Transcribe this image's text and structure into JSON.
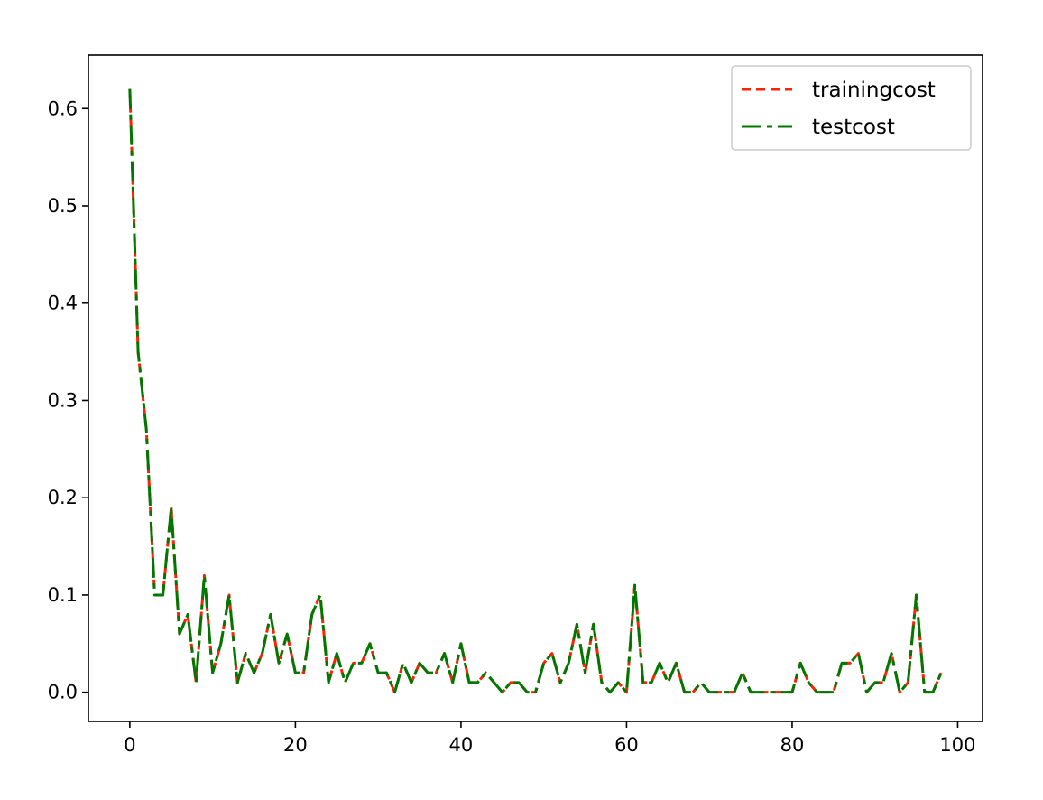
{
  "chart_data": {
    "type": "line",
    "title": "",
    "xlabel": "",
    "ylabel": "",
    "xlim": [
      -5,
      103
    ],
    "ylim": [
      -0.03,
      0.655
    ],
    "xticks": [
      0,
      20,
      40,
      60,
      80,
      100
    ],
    "yticks": [
      0.0,
      0.1,
      0.2,
      0.3,
      0.4,
      0.5,
      0.6
    ],
    "xtick_labels": [
      "0",
      "20",
      "40",
      "60",
      "80",
      "100"
    ],
    "ytick_labels": [
      "0.0",
      "0.1",
      "0.2",
      "0.3",
      "0.4",
      "0.5",
      "0.6"
    ],
    "grid": false,
    "legend_position": "top-right",
    "x": [
      0,
      1,
      2,
      3,
      4,
      5,
      6,
      7,
      8,
      9,
      10,
      11,
      12,
      13,
      14,
      15,
      16,
      17,
      18,
      19,
      20,
      21,
      22,
      23,
      24,
      25,
      26,
      27,
      28,
      29,
      30,
      31,
      32,
      33,
      34,
      35,
      36,
      37,
      38,
      39,
      40,
      41,
      42,
      43,
      44,
      45,
      46,
      47,
      48,
      49,
      50,
      51,
      52,
      53,
      54,
      55,
      56,
      57,
      58,
      59,
      60,
      61,
      62,
      63,
      64,
      65,
      66,
      67,
      68,
      69,
      70,
      71,
      72,
      73,
      74,
      75,
      76,
      77,
      78,
      79,
      80,
      81,
      82,
      83,
      84,
      85,
      86,
      87,
      88,
      89,
      90,
      91,
      92,
      93,
      94,
      95,
      96,
      97,
      98
    ],
    "series": [
      {
        "name": "trainingcost",
        "color": "#ff2200",
        "style": "dashed",
        "values": [
          0.62,
          0.35,
          0.27,
          0.1,
          0.1,
          0.19,
          0.06,
          0.08,
          0.01,
          0.12,
          0.02,
          0.05,
          0.1,
          0.01,
          0.04,
          0.02,
          0.04,
          0.08,
          0.03,
          0.06,
          0.02,
          0.02,
          0.08,
          0.1,
          0.01,
          0.04,
          0.01,
          0.03,
          0.03,
          0.05,
          0.02,
          0.02,
          0.0,
          0.03,
          0.01,
          0.03,
          0.02,
          0.02,
          0.04,
          0.01,
          0.05,
          0.01,
          0.01,
          0.02,
          0.01,
          0.0,
          0.01,
          0.01,
          0.0,
          0.0,
          0.03,
          0.04,
          0.01,
          0.03,
          0.07,
          0.02,
          0.07,
          0.01,
          0.0,
          0.01,
          0.0,
          0.11,
          0.01,
          0.01,
          0.03,
          0.01,
          0.03,
          0.0,
          0.0,
          0.01,
          0.0,
          0.0,
          0.0,
          0.0,
          0.02,
          0.0,
          0.0,
          0.0,
          0.0,
          0.0,
          0.0,
          0.03,
          0.01,
          0.0,
          0.0,
          0.0,
          0.03,
          0.03,
          0.04,
          0.0,
          0.01,
          0.01,
          0.04,
          0.0,
          0.01,
          0.1,
          0.0,
          0.0,
          0.02
        ]
      },
      {
        "name": "testcost",
        "color": "#007700",
        "style": "dashed",
        "values": [
          0.62,
          0.35,
          0.27,
          0.1,
          0.1,
          0.19,
          0.06,
          0.08,
          0.01,
          0.12,
          0.02,
          0.05,
          0.1,
          0.01,
          0.04,
          0.02,
          0.04,
          0.08,
          0.03,
          0.06,
          0.02,
          0.02,
          0.08,
          0.1,
          0.01,
          0.04,
          0.01,
          0.03,
          0.03,
          0.05,
          0.02,
          0.02,
          0.0,
          0.03,
          0.01,
          0.03,
          0.02,
          0.02,
          0.04,
          0.01,
          0.05,
          0.01,
          0.01,
          0.02,
          0.01,
          0.0,
          0.01,
          0.01,
          0.0,
          0.0,
          0.03,
          0.04,
          0.01,
          0.03,
          0.07,
          0.02,
          0.07,
          0.01,
          0.0,
          0.01,
          0.0,
          0.11,
          0.01,
          0.01,
          0.03,
          0.01,
          0.03,
          0.0,
          0.0,
          0.01,
          0.0,
          0.0,
          0.0,
          0.0,
          0.02,
          0.0,
          0.0,
          0.0,
          0.0,
          0.0,
          0.0,
          0.03,
          0.01,
          0.0,
          0.0,
          0.0,
          0.03,
          0.03,
          0.04,
          0.0,
          0.01,
          0.01,
          0.04,
          0.0,
          0.01,
          0.1,
          0.0,
          0.0,
          0.02
        ]
      }
    ]
  }
}
